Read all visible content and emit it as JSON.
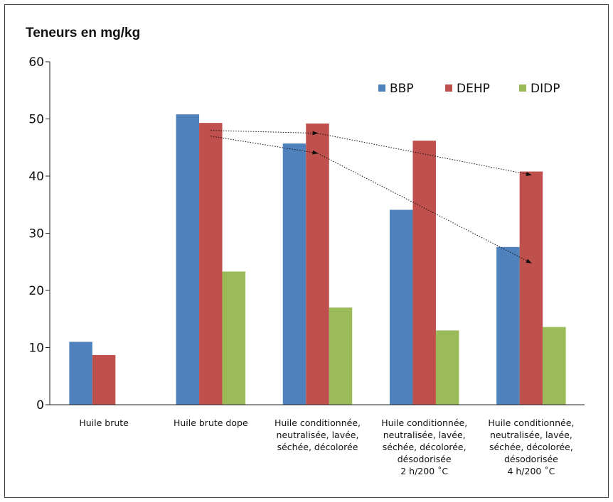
{
  "chart_data": {
    "type": "bar",
    "ylabel": "Teneurs en mg/kg",
    "ylim": [
      0,
      60
    ],
    "yticks": [
      0,
      10,
      20,
      30,
      40,
      50,
      60
    ],
    "grid": false,
    "legend_position": "top-right",
    "categories": [
      [
        "Huile brute"
      ],
      [
        "Huile brute dope"
      ],
      [
        "Huile conditionnée,",
        "neutralisée, lavée,",
        "séchée, décolorée"
      ],
      [
        "Huile conditionnée,",
        "neutralisée, lavée,",
        "séchée, décolorée,",
        "désodorisée",
        "2 h/200 ˚C"
      ],
      [
        "Huile conditionnée,",
        "neutralisée, lavée,",
        "séchée, décolorée,",
        "désodorisée",
        "4 h/200 ˚C"
      ]
    ],
    "series": [
      {
        "name": "BBP",
        "color": "#4f81bd",
        "values": [
          11.0,
          50.8,
          45.7,
          34.1,
          27.6
        ]
      },
      {
        "name": "DEHP",
        "color": "#c0504d",
        "values": [
          8.7,
          49.3,
          49.2,
          46.2,
          40.8
        ]
      },
      {
        "name": "DIDP",
        "color": "#9bbb59",
        "values": [
          null,
          23.3,
          17.0,
          13.0,
          13.6
        ]
      }
    ],
    "annotations": [
      {
        "type": "dotted-arrow",
        "from": {
          "category": 1,
          "value": 48
        },
        "to": {
          "category": 2,
          "value": 47.5
        }
      },
      {
        "type": "dotted-arrow",
        "from": {
          "category": 2,
          "value": 47.5
        },
        "to": {
          "category": 4,
          "value": 40.2
        }
      },
      {
        "type": "dotted-arrow",
        "from": {
          "category": 1,
          "value": 47
        },
        "to": {
          "category": 2,
          "value": 44
        }
      },
      {
        "type": "dotted-arrow",
        "from": {
          "category": 2,
          "value": 44
        },
        "to": {
          "category": 4,
          "value": 24.8
        }
      }
    ]
  }
}
